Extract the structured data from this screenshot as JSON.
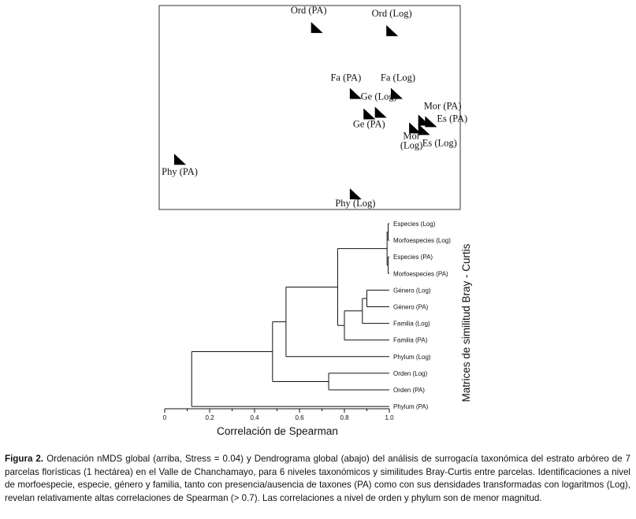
{
  "figure": {
    "nmds": {
      "points": [
        {
          "label": "Ord (PA)",
          "x": 0.55,
          "y": 0.92
        },
        {
          "label": "Ord (Log)",
          "x": 0.88,
          "y": 0.9
        },
        {
          "label": "Fa (PA)",
          "x": 0.72,
          "y": 0.5
        },
        {
          "label": "Fa (Log)",
          "x": 0.9,
          "y": 0.5
        },
        {
          "label": "Ge (Log)",
          "x": 0.83,
          "y": 0.38
        },
        {
          "label": "Ge (PA)",
          "x": 0.78,
          "y": 0.37
        },
        {
          "label": "Mor (PA)",
          "x": 1.02,
          "y": 0.33
        },
        {
          "label": "Es (PA)",
          "x": 1.05,
          "y": 0.32
        },
        {
          "label": "Mor (Log)",
          "x": 0.98,
          "y": 0.28
        },
        {
          "label": "Es (Log)",
          "x": 1.02,
          "y": 0.27
        },
        {
          "label": "Phy (PA)",
          "x": -0.05,
          "y": 0.08
        },
        {
          "label": "Phy (Log)",
          "x": 0.72,
          "y": -0.14
        }
      ]
    },
    "dendrogram": {
      "leaves": [
        "Especies (Log)",
        "Morfoespecies (Log)",
        "Especies (PA)",
        "Morfoespecies (PA)",
        "Género (Log)",
        "Género (PA)",
        "Familia (Log)",
        "Familia (PA)",
        "Phylum (Log)",
        "Orden (Log)",
        "Orden (PA)",
        "Phylum (PA)"
      ],
      "x_axis_title": "Correlación de Spearman",
      "x_ticks": [
        "0",
        "0.2",
        "0.4",
        "0.6",
        "0.8",
        "1.0"
      ],
      "side_label": "Matrices de similitud Bray - Curtis"
    }
  },
  "chart_data": [
    {
      "type": "scatter",
      "points": [
        {
          "label": "Ord (PA)",
          "x": 0.55,
          "y": 0.92
        },
        {
          "label": "Ord (Log)",
          "x": 0.88,
          "y": 0.9
        },
        {
          "label": "Fa (PA)",
          "x": 0.72,
          "y": 0.5
        },
        {
          "label": "Fa (Log)",
          "x": 0.9,
          "y": 0.5
        },
        {
          "label": "Ge (Log)",
          "x": 0.83,
          "y": 0.38
        },
        {
          "label": "Ge (PA)",
          "x": 0.78,
          "y": 0.37
        },
        {
          "label": "Mor (PA)",
          "x": 1.02,
          "y": 0.33
        },
        {
          "label": "Es (PA)",
          "x": 1.05,
          "y": 0.32
        },
        {
          "label": "Mor (Log)",
          "x": 0.98,
          "y": 0.28
        },
        {
          "label": "Es (Log)",
          "x": 1.02,
          "y": 0.27
        },
        {
          "label": "Phy (PA)",
          "x": -0.05,
          "y": 0.08
        },
        {
          "label": "Phy (Log)",
          "x": 0.72,
          "y": -0.14
        }
      ]
    },
    {
      "type": "dendrogram",
      "leaves": [
        "Especies (Log)",
        "Morfoespecies (Log)",
        "Especies (PA)",
        "Morfoespecies (PA)",
        "Género (Log)",
        "Género (PA)",
        "Familia (Log)",
        "Familia (PA)",
        "Phylum (Log)",
        "Orden (Log)",
        "Orden (PA)",
        "Phylum (PA)"
      ],
      "merges": [
        {
          "a": "Especies (Log)",
          "b": "Morfoespecies (Log)",
          "corr": 0.995
        },
        {
          "a": "Especies (PA)",
          "b": "Morfoespecies (PA)",
          "corr": 0.995
        },
        {
          "a": "Género (Log)",
          "b": "Género (PA)",
          "corr": 0.9
        },
        {
          "a": "Especies/Morfoespecies (Log)",
          "b": "Especies/Morfoespecies (PA)",
          "corr": 0.99
        },
        {
          "a": "Género (Log+PA)",
          "b": "Familia (Log)",
          "corr": 0.88
        },
        {
          "a": "Género+Familia (Log)",
          "b": "Familia (PA)",
          "corr": 0.8
        },
        {
          "a": "Especies/Morfoespecies",
          "b": "Género/Familia",
          "corr": 0.77
        },
        {
          "a": "Orden (Log)",
          "b": "Orden (PA)",
          "corr": 0.73
        },
        {
          "a": "Especies..Familia",
          "b": "Phylum (Log)",
          "corr": 0.54
        },
        {
          "a": "Especies..Phylum (Log)",
          "b": "Orden",
          "corr": 0.48
        },
        {
          "a": "all above",
          "b": "Phylum (PA)",
          "corr": 0.12
        }
      ],
      "xlabel": "Correlación de Spearman",
      "xlim": [
        0,
        1.0
      ],
      "x_ticks": [
        0,
        0.2,
        0.4,
        0.6,
        0.8,
        1.0
      ],
      "ylabel": "Matrices de similitud Bray - Curtis"
    }
  ],
  "caption": {
    "bold": "Figura 2.",
    "text": " Ordenación nMDS global (arriba, Stress = 0.04) y Dendrograma global (abajo) del análisis de surrogacía taxonómica del estrato arbóreo de 7 parcelas florísticas (1 hectárea) en el Valle de Chanchamayo, para 6 niveles taxonómicos y similitudes Bray-Curtis entre parcelas. Identificaciones a nivel de morfoespecie, especie, género y familia, tanto con presencia/ausencia de taxones (PA) como con sus densidades transformadas con logaritmos (Log), revelan relativamente altas correlaciones de Spearman (> 0.7). Las correlaciones a nivel de orden y phylum son de menor magnitud."
  }
}
